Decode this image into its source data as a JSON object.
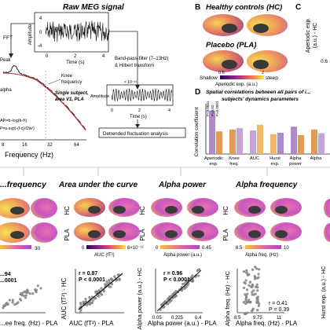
{
  "panel_a": {
    "raw_title": "Raw MEG signal",
    "amp_label": "Amplitude",
    "amp_tick_top": "4",
    "amp_tick_mid": "0",
    "amp_tick_bot": "-4",
    "time_label": "Time (s)",
    "time_ticks": [
      "0",
      "2",
      "4"
    ],
    "fft": "FFT",
    "peak": "Peak",
    "knee": "Knee",
    "knee2": "frequency",
    "alpha": "alpha",
    "bpf": "Band-pass-filter (7–13Hz)",
    "hilbert": "& Hilbert transform",
    "filt_exp": "× 10⁻¹³",
    "filt_amp": "Amplitude",
    "filt_t0": "0",
    "filt_t2": "2",
    "filt_t4": "4",
    "filt_time": "Time (s)",
    "single1": "Single subject,",
    "single2": "area V1, PLA",
    "ap_formula": "AP=b-log(k-fᵡ)",
    "p_formula": "P=a·exp(-(f-c)²/2w²)",
    "freq_label": "Frequency (Hz)",
    "freq_ticks": [
      "8",
      "16",
      "32",
      "64"
    ],
    "dfa": "Detrended fluctuation analysis"
  },
  "panel_b": {
    "letter": "B",
    "hc": "Healthy controls (HC)",
    "pla": "Placebo (PLA)",
    "shallow": "Shallow",
    "steep": "steep",
    "tick0": "0.6",
    "tick1": "2",
    "colorbar": "Aperiodic exp. (a.u.)"
  },
  "panel_c": {
    "letter": "C",
    "ylabel1": "Aperiodic exp.",
    "ylabel2": "(a.u.) - HC",
    "tick": "0.6"
  },
  "panel_d": {
    "letter": "D",
    "title1": "Spatial correlations between all pairs of i...",
    "title2": "subjects' dynamics parameters",
    "ylabel": "Correlation coefficient",
    "categories": [
      "Aperiodic exp.",
      "Knee freq.",
      "AUC",
      "Hurst exp.",
      "Alpha power",
      "Alpha"
    ],
    "cat_lines": [
      [
        "Aperiodic",
        "exp."
      ],
      [
        "Knee",
        "freq."
      ],
      [
        "AUC",
        ""
      ],
      [
        "Hurst",
        "exp."
      ],
      [
        "Alpha",
        "power"
      ],
      [
        "Alpha",
        ""
      ]
    ],
    "bar_annotations": [
      "P<0.0001",
      "P=0.02",
      "P=0.0001"
    ]
  },
  "bottom": {
    "knee": {
      "title": "...frequency",
      "cb_max": "30",
      "xlabel": "...ee freq. (Hz) - PLA",
      "r_text": "...94",
      "p_text": "...0001"
    },
    "auc": {
      "title": "Area under the curve",
      "hc": "HC",
      "pla": "PLA",
      "cb_min": "0",
      "cb_label": "AUC (fT²)",
      "cb_max": "6×10⁻¹²",
      "ylabel": "AUC (fT²) - HC",
      "xlabel": "AUC (fT²) - PLA",
      "r_text": "r = 0.87",
      "p_text": "P < 0.0001",
      "x_exp": "×10⁻¹²",
      "y_exp": "×10⁻¹²",
      "ticks": [
        "2",
        "4",
        "6"
      ]
    },
    "power": {
      "title": "Alpha power",
      "hc": "HC",
      "pla": "PLA",
      "cb_min": "0",
      "cb_label": "Alpha power (a.u.)",
      "cb_max": "0.45",
      "ylabel": "Alpha power (a.u.) - HC",
      "xlabel": "Alpha power (a.u.) - PLA",
      "r_text": "r = 0.96",
      "p_text": "P < 0.0001",
      "x_ticks": [
        "0.05",
        "0.225",
        "0.4"
      ],
      "y_ticks": [
        "0.4",
        "0.25",
        "0.1"
      ]
    },
    "freq": {
      "title": "Alpha frequency",
      "hc": "HC",
      "pla": "PLA",
      "cb_min": "8.5",
      "cb_label": "Alpha freq. (Hz)",
      "cb_max": "10",
      "ylabel": "Alpha freq. (Hz) - HC",
      "xlabel": "Alpha freq. (Hz) - PLA",
      "r_text": "r = 0.41",
      "p_text": "P = 0.39",
      "x_ticks": [
        "8.5",
        "9.75",
        "11"
      ],
      "y_ticks": [
        "10.25",
        "9.75"
      ]
    },
    "hurst": {
      "ylabel": "Hurst exp. (a.u.) - HC"
    }
  }
}
